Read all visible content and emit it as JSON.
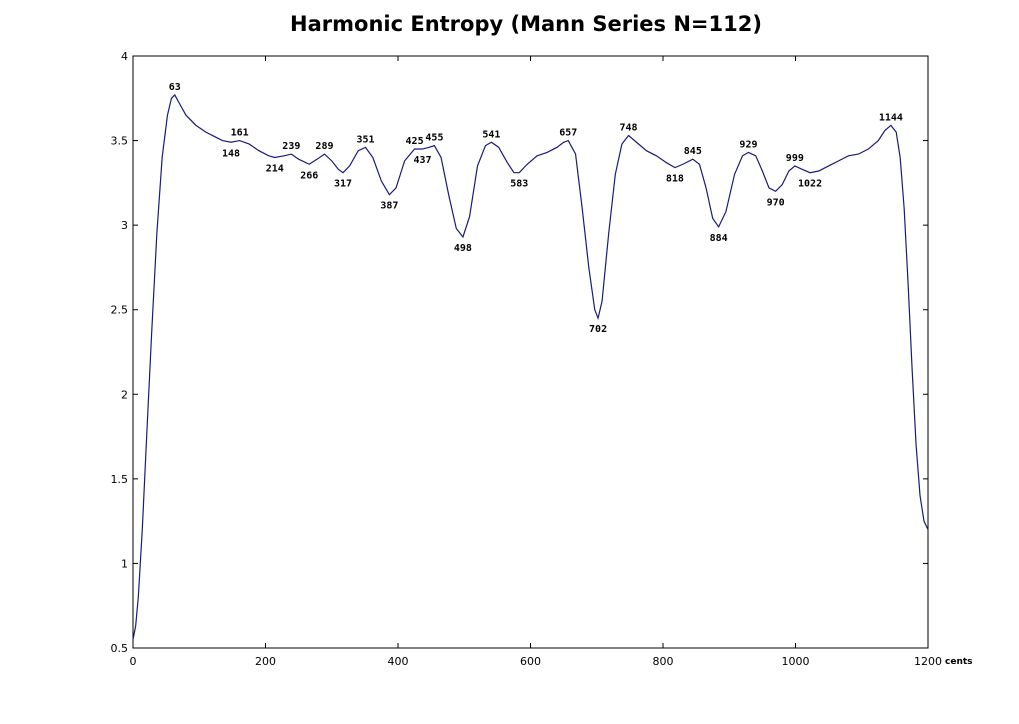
{
  "chart_data": {
    "type": "line",
    "title": "Harmonic Entropy (Mann Series N=112)",
    "xlabel": "",
    "ylabel": "",
    "x_unit": "cents",
    "xlim": [
      0,
      1200
    ],
    "ylim": [
      0.5,
      4
    ],
    "xticks": [
      0,
      200,
      400,
      600,
      800,
      1000,
      1200
    ],
    "yticks": [
      0.5,
      1,
      1.5,
      2,
      2.5,
      3,
      3.5,
      4
    ],
    "grid": false,
    "line_color": "#1a1a7a",
    "series": [
      {
        "points": [
          [
            0,
            0.55
          ],
          [
            4,
            0.63
          ],
          [
            8,
            0.8
          ],
          [
            14,
            1.2
          ],
          [
            20,
            1.7
          ],
          [
            28,
            2.35
          ],
          [
            36,
            2.95
          ],
          [
            44,
            3.4
          ],
          [
            52,
            3.65
          ],
          [
            58,
            3.75
          ],
          [
            63,
            3.77
          ],
          [
            70,
            3.72
          ],
          [
            80,
            3.65
          ],
          [
            95,
            3.59
          ],
          [
            110,
            3.55
          ],
          [
            125,
            3.52
          ],
          [
            135,
            3.5
          ],
          [
            148,
            3.49
          ],
          [
            161,
            3.5
          ],
          [
            175,
            3.48
          ],
          [
            190,
            3.44
          ],
          [
            205,
            3.41
          ],
          [
            214,
            3.4
          ],
          [
            228,
            3.41
          ],
          [
            239,
            3.42
          ],
          [
            250,
            3.39
          ],
          [
            266,
            3.36
          ],
          [
            278,
            3.39
          ],
          [
            289,
            3.42
          ],
          [
            300,
            3.38
          ],
          [
            310,
            3.33
          ],
          [
            317,
            3.31
          ],
          [
            327,
            3.35
          ],
          [
            340,
            3.44
          ],
          [
            351,
            3.46
          ],
          [
            362,
            3.4
          ],
          [
            375,
            3.26
          ],
          [
            387,
            3.18
          ],
          [
            397,
            3.22
          ],
          [
            410,
            3.38
          ],
          [
            425,
            3.45
          ],
          [
            437,
            3.45
          ],
          [
            447,
            3.46
          ],
          [
            455,
            3.47
          ],
          [
            465,
            3.4
          ],
          [
            477,
            3.17
          ],
          [
            488,
            2.98
          ],
          [
            498,
            2.93
          ],
          [
            508,
            3.05
          ],
          [
            520,
            3.35
          ],
          [
            532,
            3.47
          ],
          [
            541,
            3.49
          ],
          [
            552,
            3.46
          ],
          [
            565,
            3.37
          ],
          [
            575,
            3.31
          ],
          [
            583,
            3.31
          ],
          [
            595,
            3.36
          ],
          [
            610,
            3.41
          ],
          [
            625,
            3.43
          ],
          [
            640,
            3.46
          ],
          [
            650,
            3.49
          ],
          [
            657,
            3.5
          ],
          [
            668,
            3.42
          ],
          [
            678,
            3.1
          ],
          [
            688,
            2.75
          ],
          [
            697,
            2.5
          ],
          [
            702,
            2.45
          ],
          [
            708,
            2.55
          ],
          [
            718,
            2.95
          ],
          [
            728,
            3.3
          ],
          [
            738,
            3.48
          ],
          [
            748,
            3.53
          ],
          [
            760,
            3.49
          ],
          [
            775,
            3.44
          ],
          [
            790,
            3.41
          ],
          [
            805,
            3.37
          ],
          [
            818,
            3.34
          ],
          [
            830,
            3.36
          ],
          [
            845,
            3.39
          ],
          [
            855,
            3.36
          ],
          [
            865,
            3.22
          ],
          [
            875,
            3.04
          ],
          [
            884,
            2.99
          ],
          [
            895,
            3.08
          ],
          [
            908,
            3.3
          ],
          [
            920,
            3.41
          ],
          [
            929,
            3.43
          ],
          [
            940,
            3.41
          ],
          [
            950,
            3.32
          ],
          [
            960,
            3.22
          ],
          [
            970,
            3.2
          ],
          [
            980,
            3.24
          ],
          [
            990,
            3.32
          ],
          [
            999,
            3.35
          ],
          [
            1010,
            3.33
          ],
          [
            1022,
            3.31
          ],
          [
            1035,
            3.32
          ],
          [
            1050,
            3.35
          ],
          [
            1065,
            3.38
          ],
          [
            1080,
            3.41
          ],
          [
            1095,
            3.42
          ],
          [
            1110,
            3.45
          ],
          [
            1125,
            3.5
          ],
          [
            1135,
            3.56
          ],
          [
            1144,
            3.59
          ],
          [
            1152,
            3.55
          ],
          [
            1158,
            3.4
          ],
          [
            1164,
            3.1
          ],
          [
            1170,
            2.65
          ],
          [
            1176,
            2.15
          ],
          [
            1182,
            1.7
          ],
          [
            1188,
            1.4
          ],
          [
            1194,
            1.25
          ],
          [
            1200,
            1.2
          ]
        ]
      }
    ],
    "annotations": [
      {
        "text": "63",
        "x": 63,
        "y": 3.77,
        "pos": "above"
      },
      {
        "text": "148",
        "x": 148,
        "y": 3.49,
        "pos": "below"
      },
      {
        "text": "161",
        "x": 161,
        "y": 3.5,
        "pos": "above"
      },
      {
        "text": "214",
        "x": 214,
        "y": 3.4,
        "pos": "below"
      },
      {
        "text": "239",
        "x": 239,
        "y": 3.42,
        "pos": "above"
      },
      {
        "text": "266",
        "x": 266,
        "y": 3.36,
        "pos": "below"
      },
      {
        "text": "289",
        "x": 289,
        "y": 3.42,
        "pos": "above"
      },
      {
        "text": "317",
        "x": 317,
        "y": 3.31,
        "pos": "below"
      },
      {
        "text": "351",
        "x": 351,
        "y": 3.46,
        "pos": "above"
      },
      {
        "text": "387",
        "x": 387,
        "y": 3.18,
        "pos": "below"
      },
      {
        "text": "425",
        "x": 425,
        "y": 3.45,
        "pos": "above"
      },
      {
        "text": "437",
        "x": 437,
        "y": 3.45,
        "pos": "below"
      },
      {
        "text": "455",
        "x": 455,
        "y": 3.47,
        "pos": "above"
      },
      {
        "text": "498",
        "x": 498,
        "y": 2.93,
        "pos": "below"
      },
      {
        "text": "541",
        "x": 541,
        "y": 3.49,
        "pos": "above"
      },
      {
        "text": "583",
        "x": 583,
        "y": 3.31,
        "pos": "below"
      },
      {
        "text": "657",
        "x": 657,
        "y": 3.5,
        "pos": "above"
      },
      {
        "text": "702",
        "x": 702,
        "y": 2.45,
        "pos": "below"
      },
      {
        "text": "748",
        "x": 748,
        "y": 3.53,
        "pos": "above"
      },
      {
        "text": "818",
        "x": 818,
        "y": 3.34,
        "pos": "below"
      },
      {
        "text": "845",
        "x": 845,
        "y": 3.39,
        "pos": "above"
      },
      {
        "text": "884",
        "x": 884,
        "y": 2.99,
        "pos": "below"
      },
      {
        "text": "929",
        "x": 929,
        "y": 3.43,
        "pos": "above"
      },
      {
        "text": "970",
        "x": 970,
        "y": 3.2,
        "pos": "below"
      },
      {
        "text": "999",
        "x": 999,
        "y": 3.35,
        "pos": "above"
      },
      {
        "text": "1022",
        "x": 1022,
        "y": 3.31,
        "pos": "below"
      },
      {
        "text": "1144",
        "x": 1144,
        "y": 3.59,
        "pos": "above"
      }
    ]
  }
}
